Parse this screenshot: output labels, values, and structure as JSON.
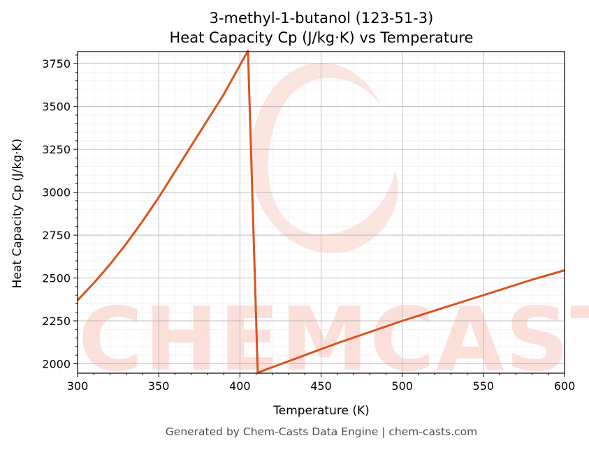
{
  "chart_data": {
    "type": "line",
    "title": "3-methyl-1-butanol (123-51-3)",
    "subtitle": "Heat Capacity Cp (J/kg·K) vs Temperature",
    "xlabel": "Temperature (K)",
    "ylabel": "Heat Capacity Cp (J/kg·K)",
    "xlim": [
      300,
      600
    ],
    "ylim": [
      1945,
      3820
    ],
    "xticks": [
      300,
      350,
      400,
      450,
      500,
      550,
      600
    ],
    "yticks": [
      2000,
      2250,
      2500,
      2750,
      3000,
      3250,
      3500,
      3750
    ],
    "grid": true,
    "line_color": "#d9541e",
    "series": [
      {
        "x": [
          300,
          310,
          320,
          330,
          340,
          350,
          360,
          370,
          380,
          390,
          400,
          405,
          411,
          420,
          440,
          460,
          480,
          500,
          520,
          540,
          560,
          580,
          600
        ],
        "y": [
          2370,
          2470,
          2580,
          2700,
          2830,
          2970,
          3120,
          3270,
          3420,
          3570,
          3740,
          3825,
          1948,
          1980,
          2050,
          2120,
          2185,
          2250,
          2310,
          2370,
          2430,
          2490,
          2545
        ]
      }
    ]
  },
  "watermark": {
    "text": "CHEMCASTS",
    "color": "#f9b9ad"
  },
  "footer": {
    "text": "Generated by Chem-Casts Data Engine | chem-casts.com"
  }
}
